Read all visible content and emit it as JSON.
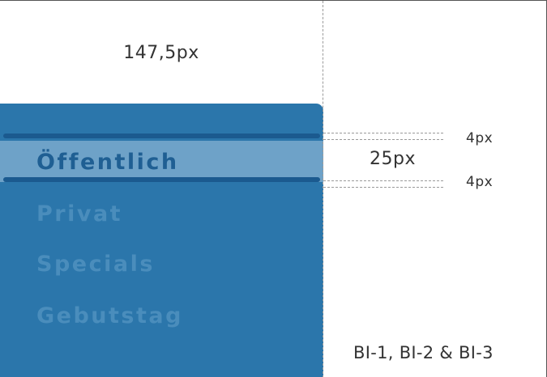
{
  "dimensions": {
    "width_label": "147,5px",
    "border_top_label": "4px",
    "item_height_label": "25px",
    "border_bottom_label": "4px"
  },
  "nav": {
    "items": [
      {
        "label": "Öffentlich",
        "active": true
      },
      {
        "label": "Privat",
        "active": false
      },
      {
        "label": "Specials",
        "active": false
      },
      {
        "label": "Gebutstag",
        "active": false
      }
    ]
  },
  "footnote": "BI-1, BI-2 & BI-3",
  "colors": {
    "panel": "#2b76ab",
    "active_highlight": "#6ea2c8",
    "active_border": "#1b5a8f",
    "active_text": "#1f5f93",
    "inactive_text": "#4a8dbc"
  }
}
